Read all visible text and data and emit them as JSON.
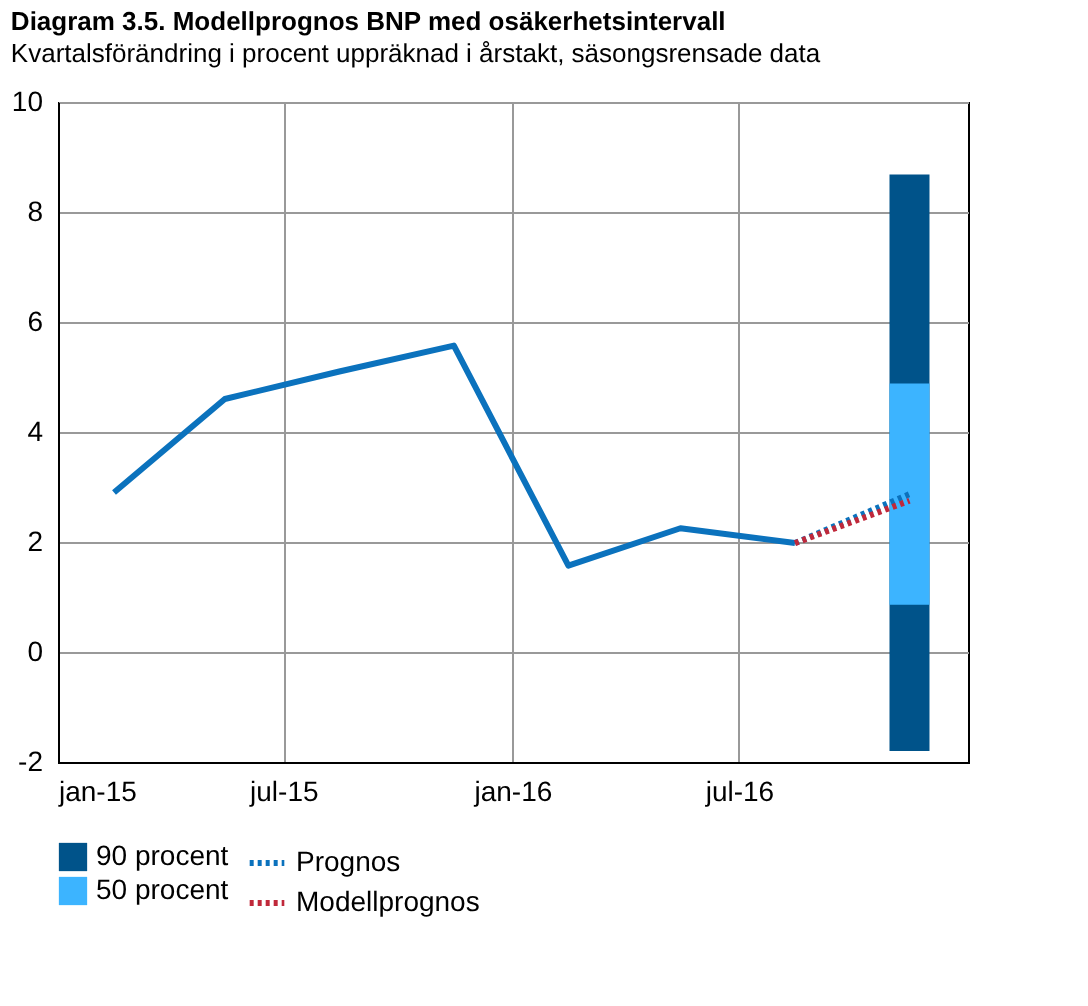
{
  "chart_data": {
    "type": "line",
    "title": "Diagram 3.5. Modellprognos BNP med osäkerhetsintervall",
    "subtitle": "Kvartalsförändring i procent uppräknad i årstakt, säsongsrensade data",
    "series": [
      {
        "color": "#0b72bd",
        "x": [
          "2015-02-15",
          "2015-05-15",
          "2015-08-15",
          "2015-11-15",
          "2016-02-15",
          "2016-05-15",
          "2016-08-15"
        ],
        "values": [
          2.9,
          4.6,
          5.1,
          5.57,
          1.57,
          2.25,
          1.98
        ]
      },
      {
        "name": "Prognos",
        "color": "#0b72bd",
        "line_style": "dotted",
        "x": [
          "2016-08-15",
          "2016-11-15"
        ],
        "values": [
          1.98,
          2.87
        ]
      },
      {
        "name": "Modellprognos",
        "color": "#c0283a",
        "line_style": "dotted",
        "x": [
          "2016-08-15",
          "2016-11-15"
        ],
        "values": [
          1.98,
          2.75
        ]
      },
      {
        "name": "90 procent",
        "type": "bar",
        "color": "#00538a",
        "x": [
          "2016-11-15"
        ],
        "base": [
          -1.8
        ],
        "values": [
          10.48
        ]
      },
      {
        "name": "50 procent",
        "type": "bar",
        "color": "#3cb4ff",
        "x": [
          "2016-11-15"
        ],
        "base": [
          0.86
        ],
        "values": [
          4.02
        ]
      }
    ],
    "xlim": [
      "2015-01-01",
      "2017-01-01"
    ],
    "xticks": [
      {
        "value": "2015-01-01",
        "label": "jan-15"
      },
      {
        "value": "2015-07-01",
        "label": "jul-15"
      },
      {
        "value": "2016-01-01",
        "label": "jan-16"
      },
      {
        "value": "2016-07-01",
        "label": "jul-16"
      }
    ],
    "ylim": [
      -2,
      10
    ],
    "yticks": [
      -2,
      0,
      2,
      4,
      6,
      8,
      10
    ],
    "grid": true,
    "legend": "bottom",
    "line_style": "solid"
  }
}
